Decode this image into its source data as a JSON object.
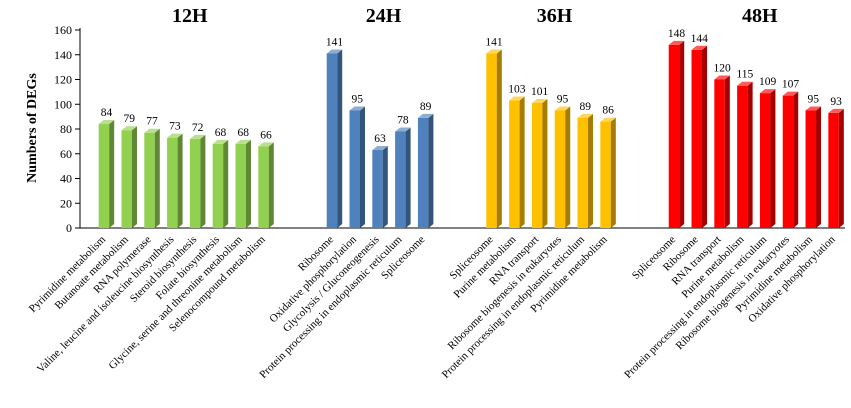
{
  "chart_data": {
    "type": "bar",
    "ylabel": "Numbers of DEGs",
    "xlabel": "",
    "ylim": [
      0,
      160
    ],
    "yticks": [
      0,
      20,
      40,
      60,
      80,
      100,
      120,
      140,
      160
    ],
    "grid": false,
    "legend": "none",
    "three_d": true,
    "groups": [
      {
        "title": "12H",
        "color": "#92D050",
        "categories": [
          "Pyrimidine metabolism",
          "Butanoate metabolism",
          "RNA polymerase",
          "Valine, leucine and isoleucine biosynthesis",
          "Steroid biosynthesis",
          "Folate biosynthesis",
          "Glycine, serine and threonine metabolism",
          "Selenocompound metabolism"
        ],
        "values": [
          84,
          79,
          77,
          73,
          72,
          68,
          68,
          66
        ]
      },
      {
        "title": "24H",
        "color": "#4F81BD",
        "categories": [
          "Ribosome",
          "Oxidative phosphorylation",
          "Glycolysis / Gluconeogenesis",
          "Protein processing in endoplasmic reticulum",
          "Spliceosome"
        ],
        "values": [
          141,
          95,
          63,
          78,
          89
        ]
      },
      {
        "title": "36H",
        "color": "#FFC000",
        "categories": [
          "Spliceosome",
          "Purine metabolism",
          "RNA transport",
          "Ribosome biogenesis in eukaryotes",
          "Protein processing in endoplasmic reticulum",
          "Pyrimidine metabolism"
        ],
        "values": [
          141,
          103,
          101,
          95,
          89,
          86
        ]
      },
      {
        "title": "48H",
        "color": "#FF0000",
        "categories": [
          "Spliceosome",
          "Ribosome",
          "RNA transport",
          "Purine metabolism",
          "Protein processing in endoplasmic reticulum",
          "Ribosome biogenesis in eukaryotes",
          "Pyrimidine metabolism",
          "Oxidative phosphorylation"
        ],
        "values": [
          148,
          144,
          120,
          115,
          109,
          107,
          95,
          93
        ]
      }
    ]
  }
}
